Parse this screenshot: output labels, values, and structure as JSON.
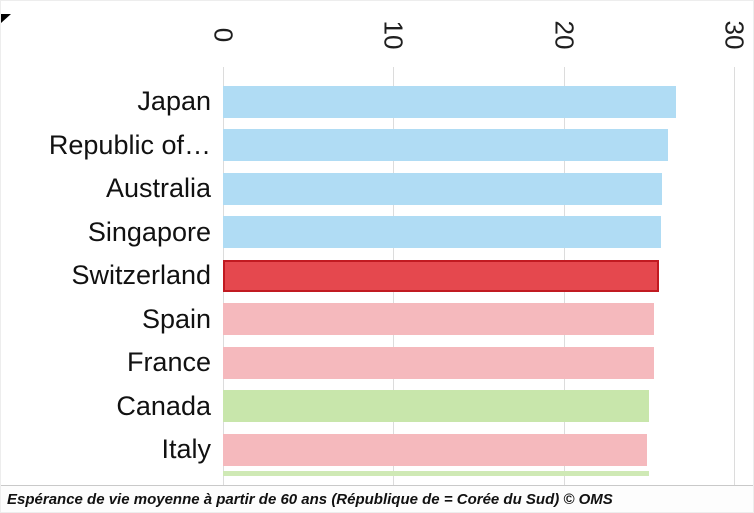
{
  "chart_data": {
    "type": "bar",
    "orientation": "horizontal",
    "title": "",
    "xlabel": "",
    "ylabel": "",
    "xlim": [
      0,
      30
    ],
    "x_ticks": [
      "0",
      "10",
      "20",
      "30"
    ],
    "grid": "vertical-light-gray",
    "legend": "none",
    "categories": [
      "Japan",
      "Republic of…",
      "Australia",
      "Singapore",
      "Switzerland",
      "Spain",
      "France",
      "Canada",
      "Italy"
    ],
    "values": [
      26.6,
      26.1,
      25.8,
      25.7,
      25.6,
      25.3,
      25.3,
      25.0,
      24.9
    ],
    "bars": [
      {
        "label": "Japan",
        "value": 26.6,
        "fill": "#b0dcf4",
        "border": null
      },
      {
        "label": "Republic of…",
        "value": 26.1,
        "fill": "#b0dcf4",
        "border": null
      },
      {
        "label": "Australia",
        "value": 25.8,
        "fill": "#b0dcf4",
        "border": null
      },
      {
        "label": "Singapore",
        "value": 25.7,
        "fill": "#b0dcf4",
        "border": null
      },
      {
        "label": "Switzerland",
        "value": 25.6,
        "fill": "#e5484e",
        "border": "#c11a21"
      },
      {
        "label": "Spain",
        "value": 25.3,
        "fill": "#f5b9bd",
        "border": null
      },
      {
        "label": "France",
        "value": 25.3,
        "fill": "#f5b9bd",
        "border": null
      },
      {
        "label": "Canada",
        "value": 25.0,
        "fill": "#c8e6ab",
        "border": null
      },
      {
        "label": "Italy",
        "value": 24.9,
        "fill": "#f5b9bd",
        "border": null
      }
    ],
    "partial_next_bar": {
      "value": 25.0,
      "fill": "#cfe9b5"
    },
    "caption": "Espérance de vie moyenne à partir de 60 ans (République de = Corée du Sud) © OMS",
    "colors": {
      "highlight_red": "#e5484e",
      "highlight_red_border": "#c11a21",
      "blue": "#b0dcf4",
      "pink": "#f5b9bd",
      "green": "#c8e6ab",
      "gridline": "#dcdcdc"
    }
  }
}
